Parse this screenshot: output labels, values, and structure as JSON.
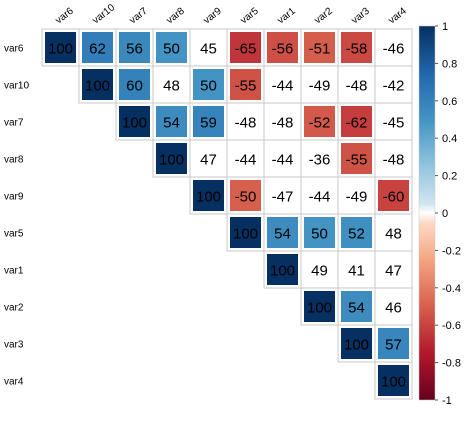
{
  "chart_data": {
    "type": "heatmap",
    "title": "",
    "variables": [
      "var6",
      "var10",
      "var7",
      "var8",
      "var9",
      "var5",
      "var1",
      "var2",
      "var3",
      "var4"
    ],
    "matrix": [
      [
        100,
        62,
        56,
        50,
        45,
        -65,
        -56,
        -51,
        -58,
        -46
      ],
      [
        null,
        100,
        60,
        48,
        50,
        -55,
        -44,
        -49,
        -48,
        -42
      ],
      [
        null,
        null,
        100,
        54,
        59,
        -48,
        -48,
        -52,
        -62,
        -45
      ],
      [
        null,
        null,
        null,
        100,
        47,
        -44,
        -44,
        -36,
        -55,
        -48
      ],
      [
        null,
        null,
        null,
        null,
        100,
        -50,
        -47,
        -44,
        -49,
        -60
      ],
      [
        null,
        null,
        null,
        null,
        null,
        100,
        54,
        50,
        52,
        48
      ],
      [
        null,
        null,
        null,
        null,
        null,
        null,
        100,
        49,
        41,
        47
      ],
      [
        null,
        null,
        null,
        null,
        null,
        null,
        null,
        100,
        54,
        46
      ],
      [
        null,
        null,
        null,
        null,
        null,
        null,
        null,
        null,
        100,
        57
      ],
      [
        null,
        null,
        null,
        null,
        null,
        null,
        null,
        null,
        null,
        100
      ]
    ],
    "significance_threshold": 50,
    "color_scale": {
      "min": -1,
      "max": 1,
      "ticks": [
        "1",
        "0.8",
        "0.6",
        "0.4",
        "0.2",
        "0",
        "-0.2",
        "-0.4",
        "-0.6",
        "-0.8",
        "-1"
      ],
      "stops": [
        {
          "value": -1,
          "color": "#67001f"
        },
        {
          "value": -0.75,
          "color": "#b2182b"
        },
        {
          "value": -0.5,
          "color": "#d6604d"
        },
        {
          "value": -0.25,
          "color": "#f4a582"
        },
        {
          "value": -0.05,
          "color": "#fddbc7"
        },
        {
          "value": 0,
          "color": "#ffffff"
        },
        {
          "value": 0.05,
          "color": "#d1e5f0"
        },
        {
          "value": 0.25,
          "color": "#92c5de"
        },
        {
          "value": 0.5,
          "color": "#4393c3"
        },
        {
          "value": 0.75,
          "color": "#2166ac"
        },
        {
          "value": 1,
          "color": "#053061"
        }
      ]
    },
    "legend_position": "right",
    "grid": true
  }
}
